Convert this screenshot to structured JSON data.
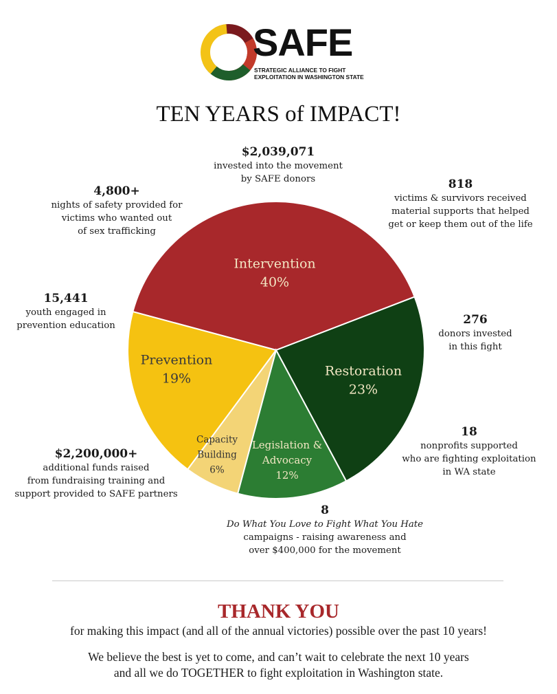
{
  "logo": {
    "word": "SAFE",
    "subtitle_line1": "STRATEGIC ALLIANCE TO FIGHT",
    "subtitle_line2": "EXPLOITATION IN WASHINGTON STATE",
    "colors": [
      "#7a1a1e",
      "#c23a2a",
      "#f3c317",
      "#1f5e2b"
    ]
  },
  "title": "TEN YEARS of IMPACT!",
  "chart_data": {
    "type": "pie",
    "title": "",
    "slices": [
      {
        "label_lines": [
          "Intervention"
        ],
        "percent_label": "40%",
        "value": 40,
        "color": "#a8282b",
        "text_color": "#f3e7c4"
      },
      {
        "label_lines": [
          "Restoration"
        ],
        "percent_label": "23%",
        "value": 23,
        "color": "#0f4014",
        "text_color": "#f3e7c4"
      },
      {
        "label_lines": [
          "Legislation &",
          "Advocacy"
        ],
        "percent_label": "12%",
        "value": 12,
        "color": "#2c7d33",
        "text_color": "#f3e7c4"
      },
      {
        "label_lines": [
          "Capacity",
          "Building"
        ],
        "percent_label": "6%",
        "value": 6,
        "color": "#f3d476",
        "text_color": "#333333"
      },
      {
        "label_lines": [
          "Prevention"
        ],
        "percent_label": "19%",
        "value": 19,
        "color": "#f5c211",
        "text_color": "#3a3a3a"
      }
    ]
  },
  "stats": {
    "invested": {
      "number": "$2,039,071",
      "lines": [
        "invested into the movement",
        "by SAFE donors"
      ]
    },
    "victims": {
      "number": "818",
      "lines": [
        "victims & survivors received",
        "material supports that helped",
        "get or keep them out of the life"
      ]
    },
    "nights": {
      "number": "4,800+",
      "lines": [
        "nights of safety provided for",
        "victims who wanted out",
        "of sex trafficking"
      ]
    },
    "youth": {
      "number": "15,441",
      "lines": [
        "youth engaged in",
        "prevention education"
      ]
    },
    "donors": {
      "number": "276",
      "lines": [
        "donors invested",
        "in this fight"
      ]
    },
    "nonprofits": {
      "number": "18",
      "lines": [
        "nonprofits supported",
        "who are fighting exploitation",
        "in WA state"
      ]
    },
    "funds": {
      "number": "$2,200,000+",
      "lines": [
        "additional funds raised",
        "from fundraising training and",
        "support provided to SAFE partners"
      ]
    },
    "campaigns": {
      "number": "8",
      "italic_line": "Do What You Love to Fight What You Hate",
      "lines": [
        "campaigns - raising awareness and",
        "over $400,000 for the movement"
      ]
    }
  },
  "footer": {
    "thank_you": "THANK YOU",
    "line1": "for making this impact (and all of the annual victories) possible over the past 10 years!",
    "line2": "We believe the best is yet to come, and can’t wait to celebrate the next 10 years",
    "line3": "and all we do TOGETHER to fight exploitation in Washington state."
  }
}
